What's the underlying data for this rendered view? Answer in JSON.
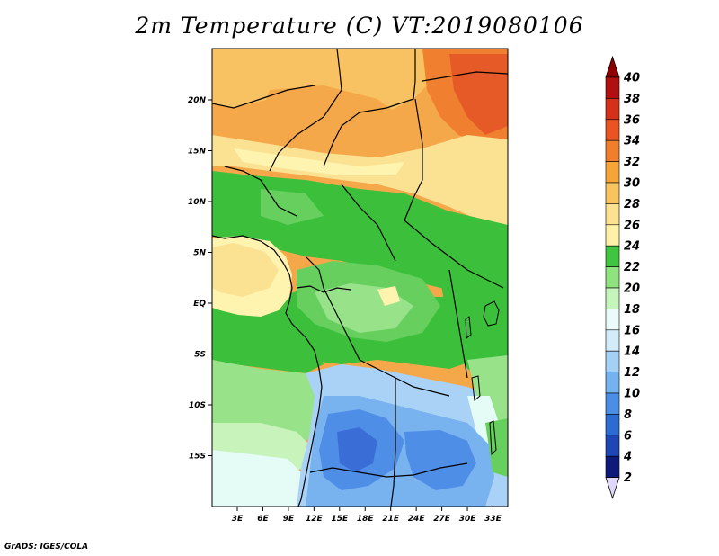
{
  "title": "2m Temperature (C) VT:2019080106",
  "credit": "GrADS: IGES/COLA",
  "axes": {
    "x_ticks": [
      "3E",
      "6E",
      "9E",
      "12E",
      "15E",
      "18E",
      "21E",
      "24E",
      "27E",
      "30E",
      "33E"
    ],
    "y_ticks": [
      "20N",
      "15N",
      "10N",
      "5N",
      "EQ",
      "5S",
      "10S",
      "15S"
    ]
  },
  "colorbar": {
    "labels": [
      "2",
      "4",
      "6",
      "8",
      "10",
      "12",
      "14",
      "16",
      "18",
      "20",
      "22",
      "24",
      "26",
      "28",
      "30",
      "32",
      "34",
      "36",
      "38",
      "40"
    ],
    "colors": [
      "#0d1a7a",
      "#1e46b4",
      "#2c6cd2",
      "#4a8ee6",
      "#76b2f0",
      "#a4cff7",
      "#d2ecfa",
      "#ebfbfb",
      "#c6f5bc",
      "#8fe37f",
      "#3fc53f",
      "#fff2a8",
      "#fce290",
      "#f8c460",
      "#f5a537",
      "#f07f2d",
      "#e85523",
      "#d5301a",
      "#b01010"
    ],
    "top_color": "#8e0000",
    "bottom_color": "#e0d8f8"
  },
  "map": {
    "palette": {
      "hot": "#f08030",
      "vhot": "#e65a28",
      "warm": "#f5a84a",
      "warm2": "#f8c262",
      "mild": "#fbe192",
      "pale": "#fff3b0",
      "green": "#3cc03c",
      "green2": "#66cf5e",
      "lgreen": "#98e38a",
      "vlgreen": "#c8f4bc",
      "cyan": "#e4fbf6",
      "lblue": "#aad2f6",
      "blue": "#78b2ef",
      "dblue": "#4f8ee6",
      "vdblue": "#3a6ed6"
    }
  }
}
